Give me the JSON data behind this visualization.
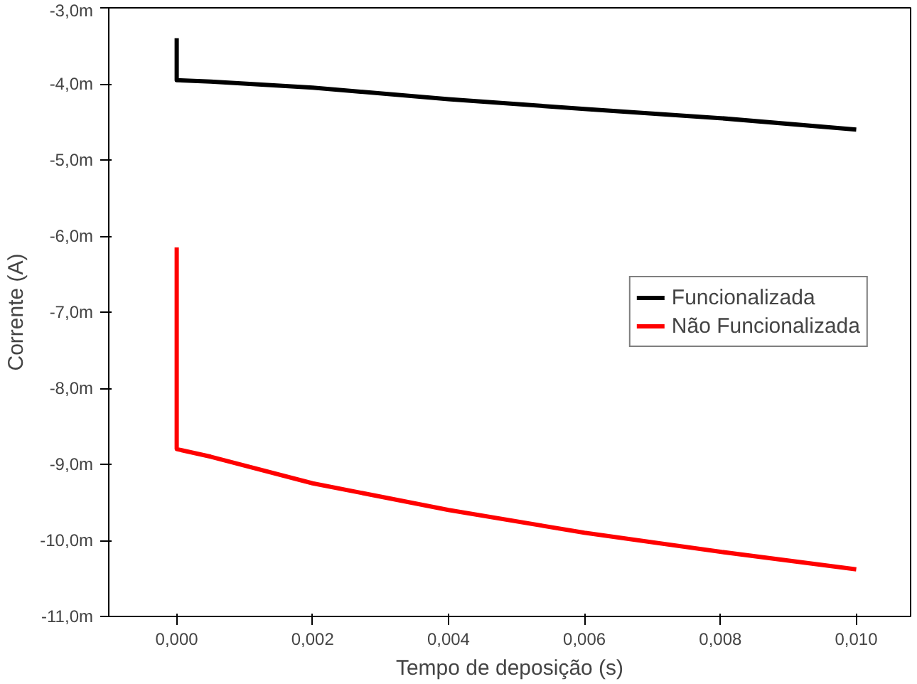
{
  "chart_data": {
    "type": "line",
    "xlabel": "Tempo de deposição (s)",
    "ylabel": "Corrente (A)",
    "xlim": [
      -0.001,
      0.0108
    ],
    "ylim": [
      -11,
      -3
    ],
    "xticks": [
      {
        "value": 0,
        "label": "0,000"
      },
      {
        "value": 0.002,
        "label": "0,002"
      },
      {
        "value": 0.004,
        "label": "0,004"
      },
      {
        "value": 0.006,
        "label": "0,006"
      },
      {
        "value": 0.008,
        "label": "0,008"
      },
      {
        "value": 0.01,
        "label": "0,010"
      }
    ],
    "yticks": [
      {
        "value": -3,
        "label": "-3,0m"
      },
      {
        "value": -4,
        "label": "-4,0m"
      },
      {
        "value": -5,
        "label": "-5,0m"
      },
      {
        "value": -6,
        "label": "-6,0m"
      },
      {
        "value": -7,
        "label": "-7,0m"
      },
      {
        "value": -8,
        "label": "-8,0m"
      },
      {
        "value": -9,
        "label": "-9,0m"
      },
      {
        "value": -10,
        "label": "-10,0m"
      },
      {
        "value": -11,
        "label": "-11,0m"
      }
    ],
    "legend": "right",
    "grid": false,
    "series": [
      {
        "name": "Funcionalizada",
        "color": "#000000",
        "x": [
          0,
          0,
          0.0005,
          0.002,
          0.004,
          0.006,
          0.008,
          0.01
        ],
        "values": [
          -3.4,
          -3.95,
          -3.97,
          -4.05,
          -4.2,
          -4.33,
          -4.45,
          -4.6
        ]
      },
      {
        "name": "Não Funcionalizada",
        "color": "#ff0000",
        "x": [
          0,
          0,
          0.0005,
          0.002,
          0.004,
          0.006,
          0.008,
          0.01
        ],
        "values": [
          -6.15,
          -8.8,
          -8.9,
          -9.25,
          -9.6,
          -9.9,
          -10.15,
          -10.38
        ]
      }
    ]
  }
}
